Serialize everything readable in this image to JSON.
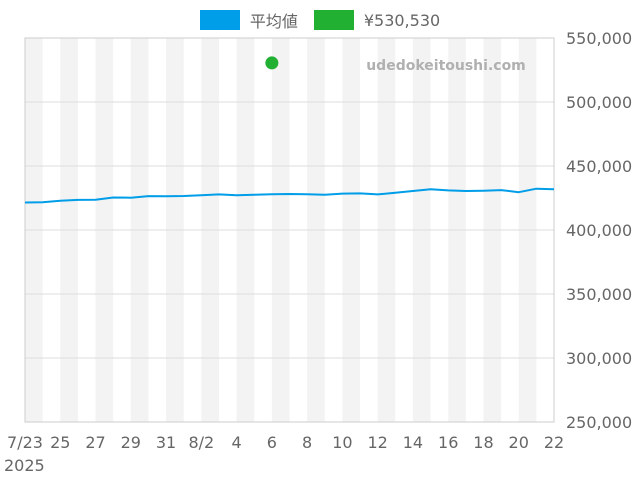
{
  "chart_data": {
    "type": "line",
    "watermark": "udedokeitoushi.com",
    "x_tick_labels": [
      "7/23",
      "25",
      "27",
      "29",
      "31",
      "8/2",
      "4",
      "6",
      "8",
      "10",
      "12",
      "14",
      "16",
      "18",
      "20",
      "22"
    ],
    "x_year_label": "2025",
    "dates": [
      "7/23",
      "7/24",
      "7/25",
      "7/26",
      "7/27",
      "7/28",
      "7/29",
      "7/30",
      "7/31",
      "8/1",
      "8/2",
      "8/3",
      "8/4",
      "8/5",
      "8/6",
      "8/7",
      "8/8",
      "8/9",
      "8/10",
      "8/11",
      "8/12",
      "8/13",
      "8/14",
      "8/15",
      "8/16",
      "8/17",
      "8/18",
      "8/19",
      "8/20",
      "8/21",
      "8/22"
    ],
    "ylim": [
      250000,
      550000
    ],
    "y_ticks": [
      "250,000",
      "300,000",
      "350,000",
      "400,000",
      "450,000",
      "500,000",
      "550,000"
    ],
    "y_tick_values": [
      250000,
      300000,
      350000,
      400000,
      450000,
      500000,
      550000
    ],
    "series": [
      {
        "name": "平均値",
        "color": "#009de8",
        "type": "line",
        "values": [
          421500,
          421700,
          422800,
          423500,
          423600,
          425400,
          425200,
          426500,
          426400,
          426600,
          427200,
          427800,
          427100,
          427500,
          427900,
          428100,
          427900,
          427600,
          428400,
          428600,
          427800,
          429100,
          430500,
          431900,
          430900,
          430500,
          430700,
          431200,
          429500,
          432300,
          431900
        ]
      },
      {
        "name": "¥530,530",
        "color": "#22b033",
        "type": "point",
        "points": [
          {
            "x": "8/6",
            "y": 530530
          }
        ]
      }
    ]
  }
}
